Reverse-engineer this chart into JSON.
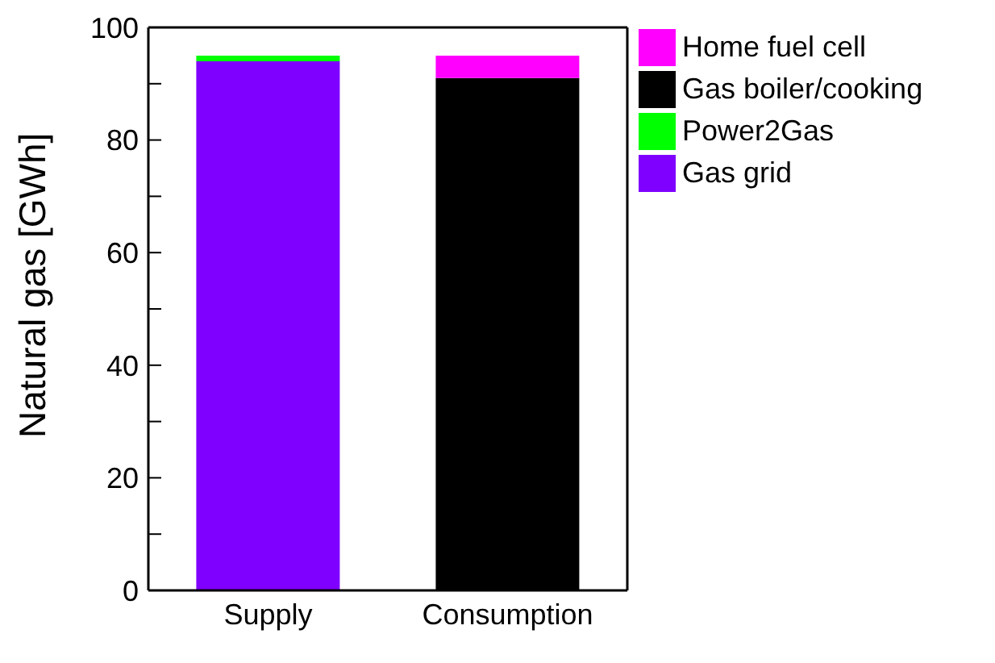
{
  "chart_data": {
    "type": "bar",
    "stacked": true,
    "ylabel": "Natural gas [GWh]",
    "categories": [
      "Supply",
      "Consumption"
    ],
    "series": [
      {
        "name": "Gas grid",
        "color": "#7f00ff",
        "values": [
          94,
          null
        ]
      },
      {
        "name": "Power2Gas",
        "color": "#00ff00",
        "values": [
          1,
          null
        ]
      },
      {
        "name": "Gas boiler/cooking",
        "color": "#000000",
        "values": [
          null,
          91
        ]
      },
      {
        "name": "Home fuel cell",
        "color": "#ff00ff",
        "values": [
          null,
          4
        ]
      }
    ],
    "ylim": [
      0,
      100
    ],
    "yticks": [
      0,
      {
        "value": 10,
        "label": null
      },
      20,
      {
        "value": 30,
        "label": null
      },
      40,
      {
        "value": 50,
        "label": null
      },
      60,
      {
        "value": 70,
        "label": null
      },
      80,
      {
        "value": 90,
        "label": null
      },
      100
    ],
    "grid": false,
    "legend": "top right"
  }
}
